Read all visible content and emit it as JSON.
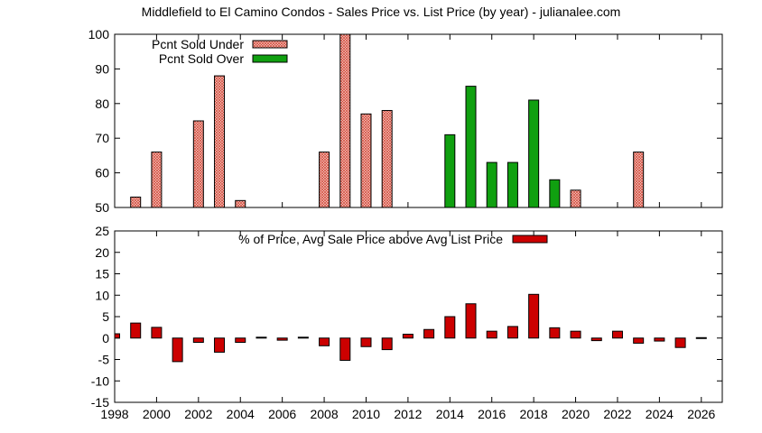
{
  "title": "Middlefield to El Camino Condos - Sales Price vs. List Price (by year) - julianalee.com",
  "colors": {
    "under_fill": "#f4c7c0",
    "under_hatch": "#d04030",
    "over_fill": "#10a010",
    "pct_fill": "#cc0000"
  },
  "chart_data": [
    {
      "type": "bar",
      "ylim": [
        50,
        100
      ],
      "yticks": [
        "50",
        "60",
        "70",
        "80",
        "90",
        "100"
      ],
      "series": [
        {
          "name": "Pcnt Sold Under",
          "points": [
            {
              "x": 1999,
              "y": 53
            },
            {
              "x": 2000,
              "y": 66
            },
            {
              "x": 2002,
              "y": 75
            },
            {
              "x": 2003,
              "y": 88
            },
            {
              "x": 2004,
              "y": 52
            },
            {
              "x": 2008,
              "y": 66
            },
            {
              "x": 2009,
              "y": 100
            },
            {
              "x": 2010,
              "y": 77
            },
            {
              "x": 2011,
              "y": 78
            },
            {
              "x": 2020,
              "y": 55
            },
            {
              "x": 2023,
              "y": 66
            }
          ]
        },
        {
          "name": "Pcnt Sold Over",
          "points": [
            {
              "x": 2014,
              "y": 71
            },
            {
              "x": 2015,
              "y": 85
            },
            {
              "x": 2016,
              "y": 63
            },
            {
              "x": 2017,
              "y": 63
            },
            {
              "x": 2018,
              "y": 81
            },
            {
              "x": 2019,
              "y": 58
            }
          ]
        }
      ]
    },
    {
      "type": "bar",
      "ylim": [
        -15,
        25
      ],
      "xlim": [
        1998,
        2027
      ],
      "yticks": [
        "-15",
        "-10",
        "-5",
        "0",
        "5",
        "10",
        "15",
        "20",
        "25"
      ],
      "xticks": [
        "1998",
        "2000",
        "2002",
        "2004",
        "2006",
        "2008",
        "2010",
        "2012",
        "2014",
        "2016",
        "2018",
        "2020",
        "2022",
        "2024",
        "2026"
      ],
      "series": [
        {
          "name": "% of Price, Avg Sale Price above Avg List Price",
          "points": [
            {
              "x": 1998,
              "y": 1
            },
            {
              "x": 1999,
              "y": 3.5
            },
            {
              "x": 2000,
              "y": 2.5
            },
            {
              "x": 2001,
              "y": -5.5
            },
            {
              "x": 2002,
              "y": -1
            },
            {
              "x": 2003,
              "y": -3.3
            },
            {
              "x": 2004,
              "y": -1
            },
            {
              "x": 2005,
              "y": 0.2
            },
            {
              "x": 2006,
              "y": -0.5
            },
            {
              "x": 2007,
              "y": 0.2
            },
            {
              "x": 2008,
              "y": -1.8
            },
            {
              "x": 2009,
              "y": -5.2
            },
            {
              "x": 2010,
              "y": -2
            },
            {
              "x": 2011,
              "y": -2.7
            },
            {
              "x": 2012,
              "y": 0.9
            },
            {
              "x": 2013,
              "y": 2
            },
            {
              "x": 2014,
              "y": 5
            },
            {
              "x": 2015,
              "y": 8
            },
            {
              "x": 2016,
              "y": 1.6
            },
            {
              "x": 2017,
              "y": 2.7
            },
            {
              "x": 2018,
              "y": 10.2
            },
            {
              "x": 2019,
              "y": 2.4
            },
            {
              "x": 2020,
              "y": 1.6
            },
            {
              "x": 2021,
              "y": -0.6
            },
            {
              "x": 2022,
              "y": 1.6
            },
            {
              "x": 2023,
              "y": -1.2
            },
            {
              "x": 2024,
              "y": -0.7
            },
            {
              "x": 2025,
              "y": -2.2
            },
            {
              "x": 2026,
              "y": 0.1
            }
          ]
        }
      ]
    }
  ]
}
